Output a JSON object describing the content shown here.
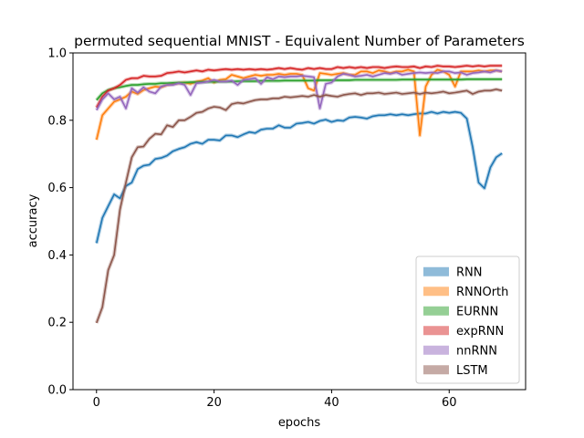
{
  "chart_data": {
    "type": "line",
    "title": "permuted sequential MNIST - Equivalent Number of Parameters",
    "xlabel": "epochs",
    "ylabel": "accuracy",
    "xlim": [
      -4,
      73
    ],
    "ylim": [
      0.0,
      1.0
    ],
    "xticks": [
      "0",
      "20",
      "40",
      "60"
    ],
    "yticks": [
      "0.0",
      "0.2",
      "0.4",
      "0.6",
      "0.8",
      "1.0"
    ],
    "grid": false,
    "legend_position": "bottom-right",
    "series": [
      {
        "name": "RNN",
        "color": "#1f77b4",
        "values": [
          0.435,
          0.51,
          0.545,
          0.58,
          0.568,
          0.605,
          0.615,
          0.655,
          0.665,
          0.668,
          0.685,
          0.688,
          0.695,
          0.708,
          0.715,
          0.72,
          0.73,
          0.735,
          0.73,
          0.742,
          0.742,
          0.74,
          0.755,
          0.755,
          0.75,
          0.758,
          0.765,
          0.762,
          0.772,
          0.775,
          0.775,
          0.785,
          0.778,
          0.778,
          0.79,
          0.792,
          0.795,
          0.79,
          0.798,
          0.802,
          0.795,
          0.8,
          0.798,
          0.808,
          0.81,
          0.808,
          0.805,
          0.812,
          0.815,
          0.815,
          0.818,
          0.815,
          0.818,
          0.815,
          0.818,
          0.82,
          0.82,
          0.825,
          0.82,
          0.825,
          0.822,
          0.825,
          0.822,
          0.805,
          0.72,
          0.615,
          0.598,
          0.66,
          0.69,
          0.702
        ]
      },
      {
        "name": "RNNOrth",
        "color": "#ff7f0e",
        "values": [
          0.742,
          0.815,
          0.835,
          0.855,
          0.862,
          0.87,
          0.885,
          0.878,
          0.89,
          0.895,
          0.9,
          0.898,
          0.905,
          0.908,
          0.91,
          0.912,
          0.908,
          0.915,
          0.918,
          0.925,
          0.912,
          0.92,
          0.922,
          0.935,
          0.93,
          0.925,
          0.93,
          0.935,
          0.932,
          0.935,
          0.935,
          0.938,
          0.935,
          0.938,
          0.938,
          0.935,
          0.895,
          0.888,
          0.94,
          0.938,
          0.935,
          0.938,
          0.94,
          0.935,
          0.935,
          0.945,
          0.945,
          0.94,
          0.948,
          0.945,
          0.94,
          0.945,
          0.945,
          0.95,
          0.945,
          0.755,
          0.9,
          0.935,
          0.95,
          0.945,
          0.935,
          0.9,
          0.945,
          0.945,
          0.945,
          0.948,
          0.945,
          0.948,
          0.948,
          0.945
        ]
      },
      {
        "name": "EURNN",
        "color": "#2ca02c",
        "values": [
          0.86,
          0.88,
          0.89,
          0.895,
          0.898,
          0.902,
          0.905,
          0.905,
          0.907,
          0.908,
          0.908,
          0.91,
          0.91,
          0.911,
          0.912,
          0.912,
          0.913,
          0.913,
          0.914,
          0.914,
          0.914,
          0.915,
          0.915,
          0.915,
          0.916,
          0.916,
          0.916,
          0.916,
          0.917,
          0.917,
          0.917,
          0.917,
          0.918,
          0.918,
          0.918,
          0.918,
          0.918,
          0.918,
          0.919,
          0.919,
          0.919,
          0.919,
          0.919,
          0.919,
          0.92,
          0.92,
          0.92,
          0.92,
          0.92,
          0.92,
          0.92,
          0.92,
          0.921,
          0.921,
          0.921,
          0.921,
          0.921,
          0.921,
          0.921,
          0.921,
          0.921,
          0.921,
          0.921,
          0.922,
          0.922,
          0.922,
          0.922,
          0.922,
          0.922,
          0.922
        ]
      },
      {
        "name": "expRNN",
        "color": "#d62728",
        "values": [
          0.838,
          0.87,
          0.888,
          0.895,
          0.905,
          0.92,
          0.925,
          0.925,
          0.932,
          0.93,
          0.93,
          0.932,
          0.94,
          0.942,
          0.945,
          0.942,
          0.945,
          0.948,
          0.945,
          0.95,
          0.948,
          0.95,
          0.952,
          0.95,
          0.952,
          0.95,
          0.952,
          0.95,
          0.952,
          0.95,
          0.952,
          0.955,
          0.952,
          0.955,
          0.952,
          0.95,
          0.955,
          0.952,
          0.955,
          0.952,
          0.952,
          0.958,
          0.955,
          0.958,
          0.955,
          0.958,
          0.955,
          0.958,
          0.958,
          0.955,
          0.958,
          0.96,
          0.958,
          0.958,
          0.96,
          0.955,
          0.96,
          0.958,
          0.962,
          0.96,
          0.96,
          0.958,
          0.96,
          0.962,
          0.96,
          0.962,
          0.96,
          0.962,
          0.962,
          0.962
        ]
      },
      {
        "name": "nnRNN",
        "color": "#9467bd",
        "values": [
          0.83,
          0.862,
          0.88,
          0.862,
          0.87,
          0.835,
          0.895,
          0.882,
          0.898,
          0.885,
          0.88,
          0.9,
          0.905,
          0.905,
          0.91,
          0.905,
          0.875,
          0.91,
          0.912,
          0.915,
          0.92,
          0.915,
          0.915,
          0.918,
          0.905,
          0.92,
          0.922,
          0.925,
          0.908,
          0.928,
          0.922,
          0.93,
          0.928,
          0.93,
          0.93,
          0.932,
          0.93,
          0.928,
          0.835,
          0.908,
          0.912,
          0.93,
          0.938,
          0.935,
          0.93,
          0.932,
          0.935,
          0.93,
          0.935,
          0.94,
          0.938,
          0.942,
          0.935,
          0.938,
          0.94,
          0.942,
          0.94,
          0.942,
          0.94,
          0.945,
          0.945,
          0.94,
          0.942,
          0.935,
          0.94,
          0.942,
          0.945,
          0.942,
          0.948,
          0.945
        ]
      },
      {
        "name": "LSTM",
        "color": "#8c564b",
        "values": [
          0.198,
          0.245,
          0.355,
          0.4,
          0.535,
          0.615,
          0.69,
          0.72,
          0.722,
          0.745,
          0.76,
          0.758,
          0.785,
          0.78,
          0.8,
          0.8,
          0.81,
          0.822,
          0.825,
          0.835,
          0.84,
          0.838,
          0.83,
          0.848,
          0.852,
          0.85,
          0.855,
          0.86,
          0.862,
          0.862,
          0.865,
          0.865,
          0.87,
          0.868,
          0.87,
          0.872,
          0.87,
          0.875,
          0.87,
          0.875,
          0.872,
          0.87,
          0.875,
          0.878,
          0.88,
          0.875,
          0.88,
          0.88,
          0.882,
          0.878,
          0.88,
          0.882,
          0.878,
          0.88,
          0.882,
          0.878,
          0.882,
          0.88,
          0.882,
          0.885,
          0.88,
          0.882,
          0.885,
          0.888,
          0.878,
          0.885,
          0.888,
          0.888,
          0.892,
          0.888
        ]
      }
    ]
  }
}
